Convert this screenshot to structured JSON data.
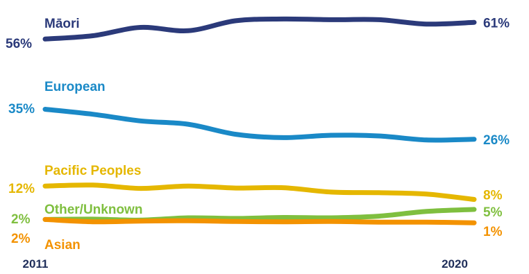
{
  "chart_data": {
    "type": "line",
    "title": "",
    "xlabel": "",
    "ylabel": "",
    "x": [
      2011,
      2012,
      2013,
      2014,
      2015,
      2016,
      2017,
      2018,
      2019,
      2020
    ],
    "x_tick_labels": [
      "2011",
      "2020"
    ],
    "ylim": [
      0,
      65
    ],
    "grid": false,
    "legend": "inline labels",
    "series": [
      {
        "name": "Māori",
        "color": "#2b3a7a",
        "values": [
          56,
          57,
          59.5,
          58.5,
          61.5,
          62,
          61.8,
          61.8,
          60.5,
          61
        ],
        "start_label": "56%",
        "end_label": "61%"
      },
      {
        "name": "European",
        "color": "#1a89c7",
        "values": [
          35,
          33.5,
          31.5,
          30.5,
          27.5,
          26.5,
          27.2,
          27,
          25.8,
          26
        ],
        "start_label": "35%",
        "end_label": "26%"
      },
      {
        "name": "Pacific Peoples",
        "color": "#e5b700",
        "values": [
          12,
          12.3,
          11.3,
          12,
          11.4,
          11.5,
          10.2,
          10,
          9.6,
          8
        ],
        "start_label": "12%",
        "end_label": "8%"
      },
      {
        "name": "Other/Unknown",
        "color": "#7fbf3f",
        "values": [
          2,
          2.1,
          1.8,
          2.5,
          2.3,
          2.6,
          2.5,
          3,
          4.4,
          5
        ],
        "start_label": "2%",
        "end_label": "5%"
      },
      {
        "name": "Asian",
        "color": "#f39200",
        "values": [
          2,
          1.3,
          1.5,
          1.6,
          1.4,
          1.3,
          1.4,
          1.2,
          1.2,
          1
        ],
        "start_label": "2%",
        "end_label": "1%"
      }
    ]
  }
}
